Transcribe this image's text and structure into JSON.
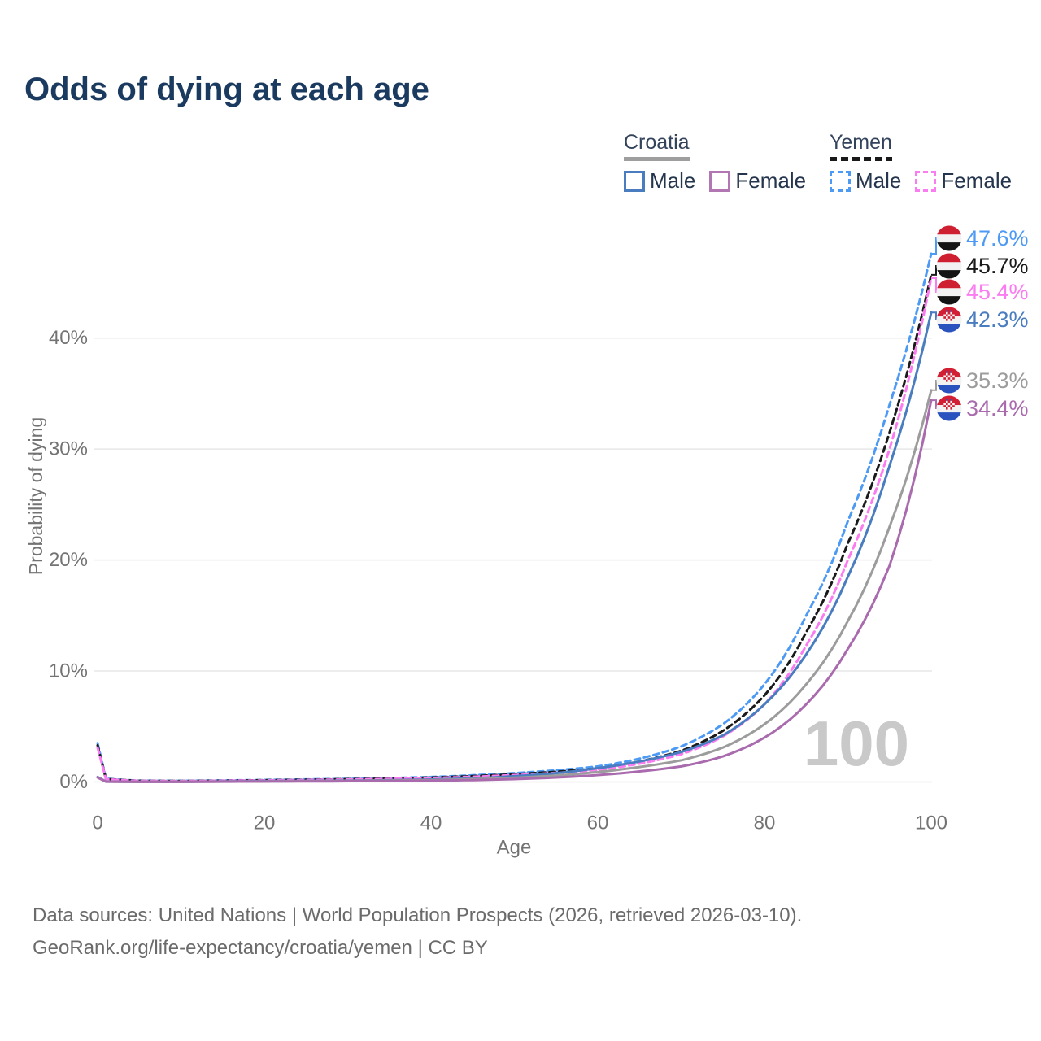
{
  "title": "Odds of dying at each age",
  "legend": {
    "croatia": {
      "name": "Croatia",
      "male_label": "Male",
      "female_label": "Female",
      "line_style": "solid",
      "underline_color": "#9e9e9e"
    },
    "yemen": {
      "name": "Yemen",
      "male_label": "Male",
      "female_label": "Female",
      "line_style": "dashed",
      "underline_color": "#1a1a1a"
    }
  },
  "chart_data": {
    "type": "line",
    "title": "Odds of dying at each age",
    "xlabel": "Age",
    "ylabel": "Probability of dying",
    "x_ticks": [
      0,
      20,
      40,
      60,
      80,
      100
    ],
    "y_tick_labels": [
      "0%",
      "10%",
      "20%",
      "30%",
      "40%"
    ],
    "y_tick_values": [
      0,
      10,
      20,
      30,
      40
    ],
    "xlim": [
      0,
      100
    ],
    "ylim_pct": [
      0,
      48
    ],
    "grid": "horizontal",
    "legend_position": "top-right",
    "watermark": "100",
    "x": [
      0,
      1,
      5,
      10,
      15,
      20,
      25,
      30,
      35,
      40,
      45,
      50,
      55,
      60,
      65,
      70,
      75,
      80,
      85,
      90,
      95,
      100
    ],
    "series": [
      {
        "name": "Yemen Male",
        "country": "Yemen",
        "sex": "Male",
        "color": "#4d9af5",
        "dashed": true,
        "end_label": "47.6%",
        "end_value": 47.6,
        "values": [
          3.5,
          0.3,
          0.12,
          0.1,
          0.14,
          0.18,
          0.23,
          0.28,
          0.35,
          0.45,
          0.6,
          0.8,
          1.05,
          1.4,
          2.1,
          3.2,
          5.2,
          8.8,
          15.0,
          23.5,
          34.0,
          47.6
        ]
      },
      {
        "name": "Yemen Both sexes",
        "country": "Yemen",
        "sex": "Both",
        "color": "#1a1a1a",
        "dashed": true,
        "end_label": "45.7%",
        "end_value": 45.7,
        "values": [
          3.3,
          0.28,
          0.11,
          0.09,
          0.12,
          0.16,
          0.2,
          0.25,
          0.31,
          0.4,
          0.53,
          0.7,
          0.92,
          1.22,
          1.85,
          2.8,
          4.6,
          7.8,
          13.5,
          21.5,
          31.5,
          45.7
        ]
      },
      {
        "name": "Yemen Female",
        "country": "Yemen",
        "sex": "Female",
        "color": "#fb7bf0",
        "dashed": true,
        "end_label": "45.4%",
        "end_value": 45.4,
        "values": [
          3.1,
          0.26,
          0.1,
          0.08,
          0.11,
          0.14,
          0.18,
          0.22,
          0.28,
          0.36,
          0.47,
          0.62,
          0.82,
          1.08,
          1.65,
          2.5,
          4.1,
          7.0,
          12.3,
          20.0,
          30.0,
          45.4
        ]
      },
      {
        "name": "Croatia Male",
        "country": "Croatia",
        "sex": "Male",
        "color": "#4a7dc0",
        "dashed": false,
        "end_label": "42.3%",
        "end_value": 42.3,
        "values": [
          0.45,
          0.04,
          0.02,
          0.02,
          0.05,
          0.08,
          0.1,
          0.12,
          0.16,
          0.22,
          0.33,
          0.52,
          0.8,
          1.25,
          1.85,
          2.7,
          4.2,
          7.0,
          11.5,
          18.5,
          28.5,
          42.3
        ]
      },
      {
        "name": "Croatia Both sexes",
        "country": "Croatia",
        "sex": "Both",
        "color": "#9c9c9c",
        "dashed": false,
        "end_label": "35.3%",
        "end_value": 35.3,
        "values": [
          0.42,
          0.03,
          0.02,
          0.02,
          0.04,
          0.06,
          0.08,
          0.1,
          0.13,
          0.17,
          0.25,
          0.38,
          0.58,
          0.9,
          1.35,
          1.95,
          3.1,
          5.2,
          8.8,
          14.5,
          23.0,
          35.3
        ]
      },
      {
        "name": "Croatia Female",
        "country": "Croatia",
        "sex": "Female",
        "color": "#a96bae",
        "dashed": false,
        "end_label": "34.4%",
        "end_value": 34.4,
        "values": [
          0.4,
          0.03,
          0.01,
          0.01,
          0.03,
          0.04,
          0.05,
          0.07,
          0.09,
          0.12,
          0.17,
          0.26,
          0.4,
          0.62,
          0.95,
          1.4,
          2.3,
          4.0,
          7.0,
          12.0,
          19.5,
          34.4
        ]
      }
    ],
    "flag_colors": {
      "yemen_red": "#ce2030",
      "yemen_white": "#f2f2f2",
      "yemen_black": "#141414",
      "croatia_red": "#d21f33",
      "croatia_white": "#f2f2f2",
      "croatia_blue": "#2a52be"
    }
  },
  "footer": {
    "line1": "Data sources: United Nations | World Population Prospects (2026, retrieved 2026-03-10).",
    "line2": "GeoRank.org/life-expectancy/croatia/yemen | CC BY"
  }
}
